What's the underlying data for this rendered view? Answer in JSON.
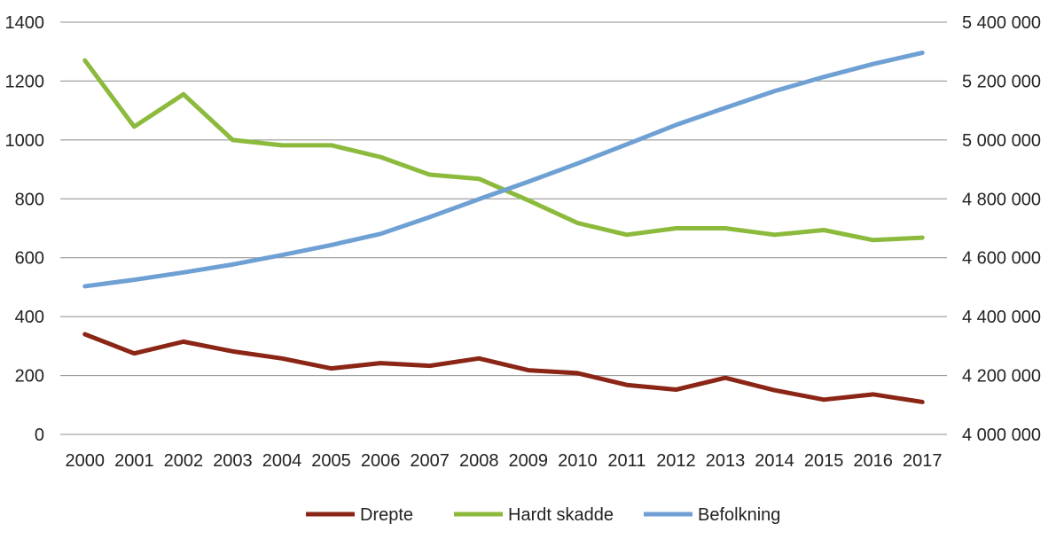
{
  "chart_data": {
    "type": "line",
    "title": "",
    "xlabel": "",
    "ylabel_left": "",
    "ylabel_right": "",
    "x": [
      "2000",
      "2001",
      "2002",
      "2003",
      "2004",
      "2005",
      "2006",
      "2007",
      "2008",
      "2009",
      "2010",
      "2011",
      "2012",
      "2013",
      "2014",
      "2015",
      "2016",
      "2017"
    ],
    "y_left_lim": [
      0,
      1400
    ],
    "y_left_ticks": [
      "0",
      "200",
      "400",
      "600",
      "800",
      "1000",
      "1200",
      "1400"
    ],
    "y_right_lim": [
      4000000,
      5400000
    ],
    "y_right_ticks": [
      "4 000 000",
      "4 200 000",
      "4 400 000",
      "4 600 000",
      "4 800 000",
      "5 000 000",
      "5 200 000",
      "5 400 000"
    ],
    "grid": "horizontal",
    "legend_position": "bottom",
    "series": [
      {
        "name": "Drepte",
        "axis": "left",
        "color": "#8b2515",
        "values": [
          340,
          275,
          315,
          282,
          258,
          224,
          242,
          233,
          258,
          218,
          208,
          168,
          152,
          192,
          150,
          118,
          136,
          110
        ]
      },
      {
        "name": "Hardt skadde",
        "axis": "left",
        "color": "#8cba3c",
        "values": [
          1270,
          1045,
          1155,
          1000,
          982,
          982,
          942,
          882,
          868,
          795,
          718,
          678,
          700,
          700,
          678,
          694,
          660,
          668
        ]
      },
      {
        "name": "Befolkning",
        "axis": "right",
        "color": "#6fa0d4",
        "values": [
          4503000,
          4525000,
          4550000,
          4577000,
          4609000,
          4643000,
          4681000,
          4738000,
          4799000,
          4858000,
          4920000,
          4985000,
          5051000,
          5109000,
          5166000,
          5214000,
          5258000,
          5296000
        ]
      }
    ]
  }
}
